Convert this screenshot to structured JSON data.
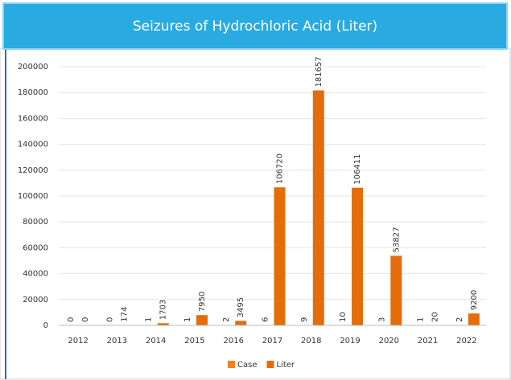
{
  "chart_data": {
    "type": "bar",
    "title": "Seizures of Hydrochloric Acid (Liter)",
    "categories": [
      "2012",
      "2013",
      "2014",
      "2015",
      "2016",
      "2017",
      "2018",
      "2019",
      "2020",
      "2021",
      "2022"
    ],
    "series": [
      {
        "name": "Case",
        "color": "#f0821e",
        "values": [
          0,
          0,
          1,
          1,
          2,
          6,
          9,
          10,
          3,
          1,
          2
        ]
      },
      {
        "name": "Liter",
        "color": "#e46c0a",
        "values": [
          0,
          174,
          1703,
          7950,
          3495,
          106720,
          181657,
          106411,
          53827,
          20,
          9200
        ]
      }
    ],
    "ylim": [
      0,
      200000
    ],
    "yticks": [
      0,
      20000,
      40000,
      60000,
      80000,
      100000,
      120000,
      140000,
      160000,
      180000,
      200000
    ],
    "grid": true,
    "legend": "bottom"
  }
}
